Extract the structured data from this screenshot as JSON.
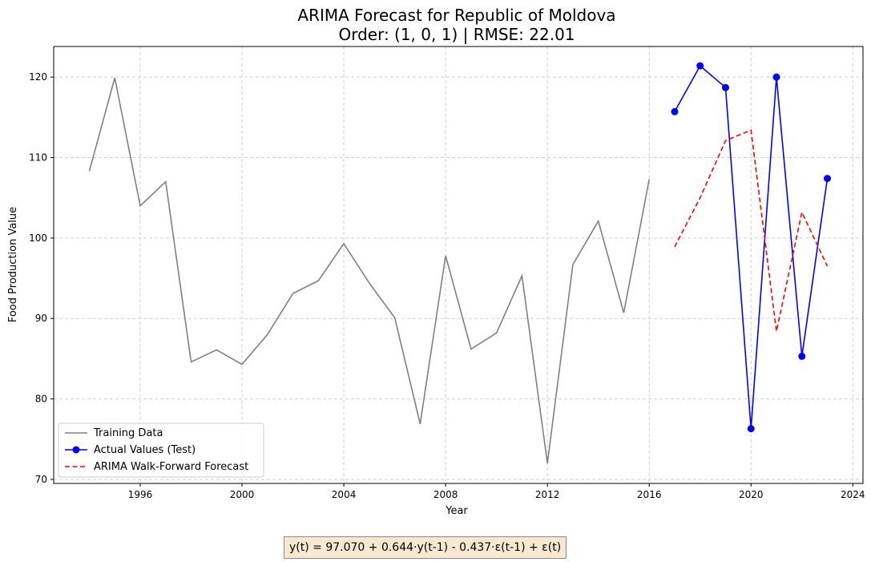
{
  "chart_data": {
    "type": "line",
    "title": "ARIMA Forecast for Republic of Moldova",
    "subtitle": "Order: (1, 0, 1) | RMSE: 22.01",
    "xlabel": "Year",
    "ylabel": "Food Production Value",
    "xlim": [
      1992.6,
      2024.4
    ],
    "ylim": [
      69.5,
      123.8
    ],
    "xticks": [
      1996,
      2000,
      2004,
      2008,
      2012,
      2016,
      2020,
      2024
    ],
    "yticks": [
      70,
      80,
      90,
      100,
      110,
      120
    ],
    "grid": true,
    "legend_position": "lower-left",
    "series": [
      {
        "name": "Training Data",
        "color": "#808080",
        "style": "solid",
        "marker": "none",
        "x": [
          1994,
          1995,
          1996,
          1997,
          1998,
          1999,
          2000,
          2001,
          2002,
          2003,
          2004,
          2005,
          2006,
          2007,
          2008,
          2009,
          2010,
          2011,
          2012,
          2013,
          2014,
          2015,
          2016
        ],
        "y": [
          108.3,
          119.9,
          104.0,
          107.0,
          84.6,
          86.1,
          84.3,
          88.0,
          93.1,
          94.7,
          99.3,
          94.4,
          90.1,
          76.9,
          97.8,
          86.2,
          88.2,
          95.3,
          72.0,
          96.7,
          102.1,
          90.7,
          107.3
        ]
      },
      {
        "name": "Actual Values (Test)",
        "color": "#0000ff",
        "style": "solid",
        "marker": "circle",
        "x": [
          2017,
          2018,
          2019,
          2020,
          2021,
          2022,
          2023
        ],
        "y": [
          115.7,
          121.4,
          118.7,
          76.3,
          120.0,
          85.3,
          107.4
        ]
      },
      {
        "name": "ARIMA Walk-Forward Forecast",
        "color": "#ff0000",
        "style": "dashed",
        "marker": "none",
        "x": [
          2017,
          2018,
          2019,
          2020,
          2021,
          2022,
          2023
        ],
        "y": [
          98.9,
          105.0,
          112.1,
          113.4,
          88.4,
          103.2,
          96.5
        ]
      }
    ]
  },
  "equation": "y(t) = 97.070 + 0.644·y(t-1) - 0.437·ε(t-1) + ε(t)"
}
